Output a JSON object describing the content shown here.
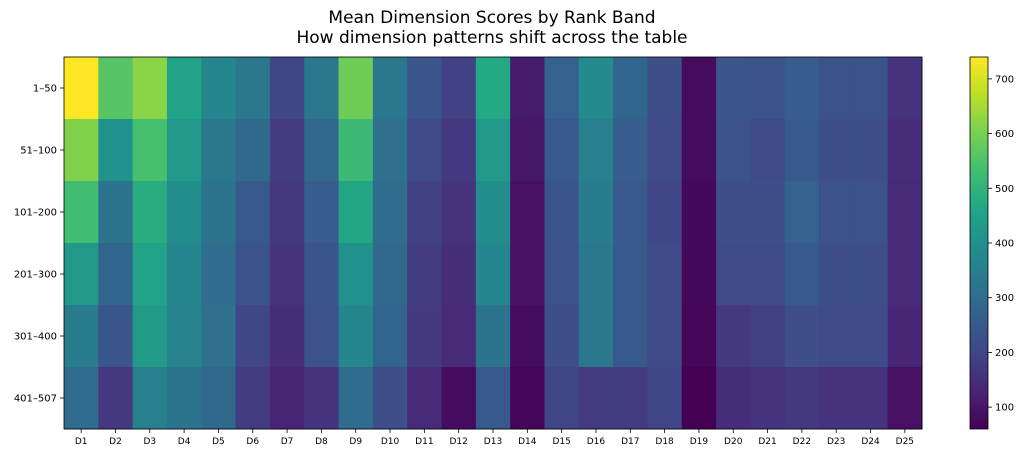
{
  "chart_data": {
    "type": "heatmap",
    "title": "Mean Dimension Scores by Rank Band",
    "subtitle": "How dimension patterns shift across the table",
    "xlabel": "",
    "ylabel": "",
    "x_categories": [
      "D1",
      "D2",
      "D3",
      "D4",
      "D5",
      "D6",
      "D7",
      "D8",
      "D9",
      "D10",
      "D11",
      "D12",
      "D13",
      "D14",
      "D15",
      "D16",
      "D17",
      "D18",
      "D19",
      "D20",
      "D21",
      "D22",
      "D23",
      "D24",
      "D25"
    ],
    "y_categories": [
      "1–50",
      "51–100",
      "101–200",
      "201–300",
      "301–400",
      "401–507"
    ],
    "values": [
      [
        740,
        560,
        620,
        450,
        370,
        330,
        200,
        330,
        590,
        330,
        240,
        190,
        470,
        110,
        270,
        380,
        280,
        220,
        80,
        240,
        230,
        260,
        230,
        230,
        160
      ],
      [
        610,
        400,
        540,
        420,
        330,
        290,
        180,
        290,
        520,
        310,
        210,
        170,
        420,
        100,
        250,
        350,
        260,
        210,
        80,
        230,
        210,
        250,
        220,
        220,
        150
      ],
      [
        530,
        320,
        480,
        390,
        320,
        250,
        170,
        260,
        460,
        300,
        190,
        160,
        390,
        90,
        240,
        340,
        250,
        200,
        75,
        220,
        220,
        270,
        230,
        230,
        140
      ],
      [
        420,
        280,
        450,
        370,
        300,
        230,
        160,
        240,
        400,
        290,
        180,
        150,
        370,
        90,
        230,
        330,
        250,
        210,
        75,
        210,
        210,
        250,
        220,
        220,
        140
      ],
      [
        340,
        240,
        430,
        360,
        310,
        200,
        150,
        230,
        370,
        280,
        170,
        140,
        320,
        80,
        220,
        330,
        250,
        210,
        70,
        170,
        190,
        220,
        210,
        210,
        130
      ],
      [
        300,
        170,
        350,
        320,
        290,
        180,
        130,
        160,
        300,
        220,
        140,
        80,
        250,
        70,
        200,
        180,
        180,
        200,
        60,
        150,
        160,
        170,
        160,
        160,
        90
      ]
    ],
    "colorbar": {
      "min": 60,
      "max": 740,
      "ticks": [
        100,
        200,
        300,
        400,
        500,
        600,
        700
      ]
    },
    "colormap": "viridis",
    "grid": false
  }
}
